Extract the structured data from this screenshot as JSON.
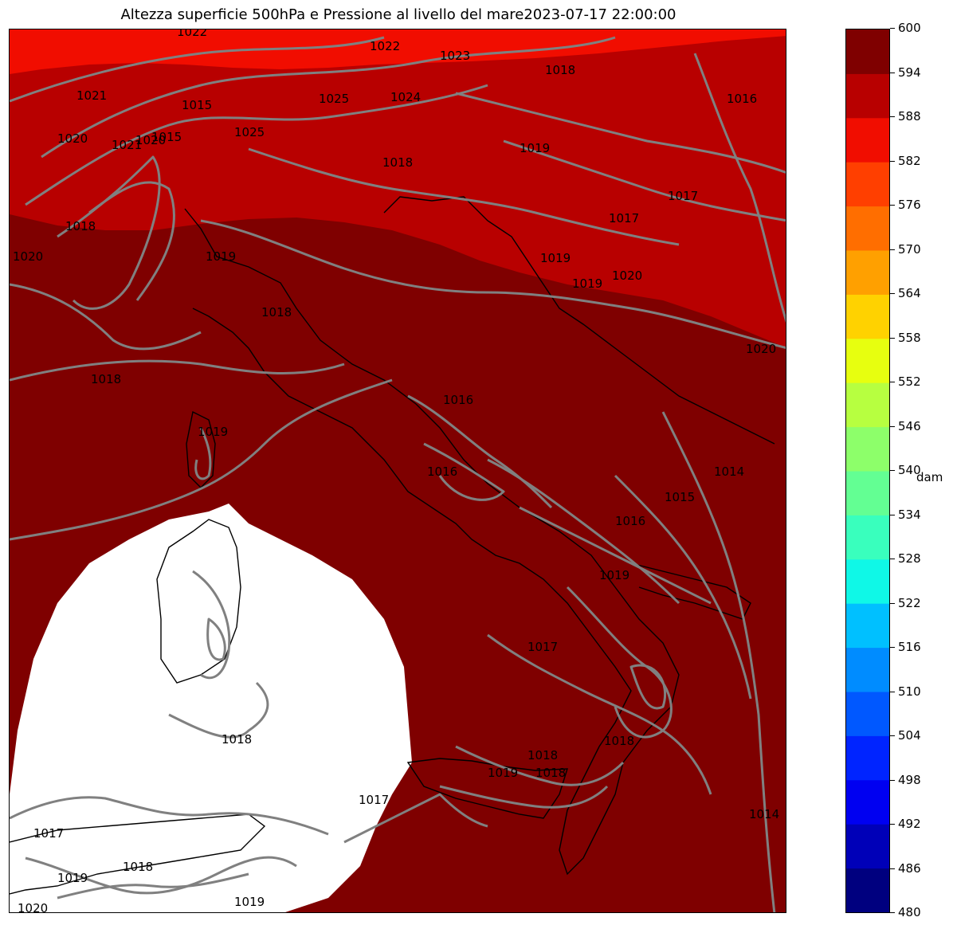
{
  "title": "Altezza superficie 500hPa e Pressione al livello del mare2023-07-17 22:00:00",
  "colorbar": {
    "unit": "dam",
    "ticks": [
      "480",
      "486",
      "492",
      "498",
      "504",
      "510",
      "516",
      "522",
      "528",
      "534",
      "540",
      "546",
      "552",
      "558",
      "564",
      "570",
      "576",
      "582",
      "588",
      "594",
      "600"
    ],
    "colors": [
      "#00007f",
      "#0000b8",
      "#0000f1",
      "#0024ff",
      "#0058ff",
      "#008cff",
      "#00c0ff",
      "#0ff8e7",
      "#39ffbd",
      "#63ff93",
      "#8dff6a",
      "#b7ff40",
      "#e7ff0f",
      "#ffd200",
      "#ffa000",
      "#ff6e00",
      "#ff3f00",
      "#f10d00",
      "#b80000",
      "#7f0000"
    ]
  },
  "map": {
    "field_colors": {
      "band_594_600": "#7f0000",
      "band_588_594": "#b80000",
      "band_582_588": "#f10d00",
      "missing": "#ffffff",
      "isobar": "#808080",
      "coastline": "#000000"
    },
    "isobar_labels": [
      "1022",
      "1022",
      "1023",
      "1021",
      "1018",
      "1016",
      "1024",
      "1025",
      "1025",
      "1015",
      "1020",
      "1021",
      "1020",
      "1015",
      "1019",
      "1018",
      "1017",
      "1018",
      "1017",
      "1020",
      "1020",
      "1019",
      "1019",
      "1019",
      "1018",
      "1018",
      "1016",
      "1016",
      "1019",
      "1014",
      "1015",
      "1016",
      "1019",
      "1017",
      "1018",
      "1017",
      "1017",
      "1019",
      "1018",
      "1019",
      "1018",
      "1018",
      "1014",
      "1019",
      "1020",
      "1018",
      "1020"
    ]
  }
}
